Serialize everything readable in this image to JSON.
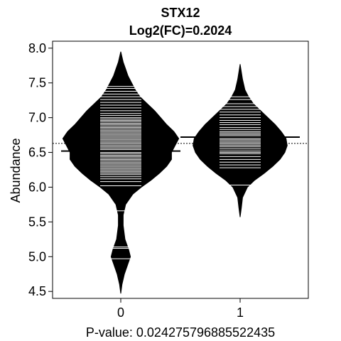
{
  "chart_data": {
    "type": "beanplot",
    "title": "STX12",
    "subtitle": "Log2(FC)=0.2024",
    "ylabel": "Abundance",
    "xlabel": "P-value: 0.024275796885522435",
    "categories": [
      "0",
      "1"
    ],
    "ylim": [
      4.4,
      8.1
    ],
    "yticks": [
      "4.5",
      "5.0",
      "5.5",
      "6.0",
      "6.5",
      "7.0",
      "7.5",
      "8.0"
    ],
    "overall_mean": 6.63,
    "groups": [
      {
        "name": "0",
        "mean": 6.52,
        "density": [
          [
            4.47,
            0.0
          ],
          [
            4.6,
            0.01
          ],
          [
            4.75,
            0.03
          ],
          [
            4.9,
            0.06
          ],
          [
            5.0,
            0.08
          ],
          [
            5.1,
            0.065
          ],
          [
            5.25,
            0.035
          ],
          [
            5.45,
            0.02
          ],
          [
            5.6,
            0.02
          ],
          [
            5.75,
            0.04
          ],
          [
            5.9,
            0.1
          ],
          [
            6.0,
            0.17
          ],
          [
            6.1,
            0.25
          ],
          [
            6.2,
            0.32
          ],
          [
            6.3,
            0.38
          ],
          [
            6.4,
            0.42
          ],
          [
            6.5,
            0.42
          ],
          [
            6.6,
            0.45
          ],
          [
            6.7,
            0.48
          ],
          [
            6.8,
            0.44
          ],
          [
            6.9,
            0.38
          ],
          [
            7.0,
            0.33
          ],
          [
            7.1,
            0.28
          ],
          [
            7.2,
            0.22
          ],
          [
            7.3,
            0.16
          ],
          [
            7.4,
            0.12
          ],
          [
            7.5,
            0.09
          ],
          [
            7.6,
            0.06
          ],
          [
            7.7,
            0.04
          ],
          [
            7.8,
            0.02
          ],
          [
            7.95,
            0.0
          ]
        ],
        "points": [
          4.97,
          5.12,
          5.14,
          5.66,
          6.02,
          6.08,
          6.12,
          6.15,
          6.18,
          6.2,
          6.22,
          6.24,
          6.26,
          6.28,
          6.3,
          6.32,
          6.34,
          6.36,
          6.38,
          6.4,
          6.42,
          6.44,
          6.46,
          6.48,
          6.5,
          6.52,
          6.54,
          6.56,
          6.58,
          6.6,
          6.62,
          6.64,
          6.66,
          6.68,
          6.7,
          6.72,
          6.74,
          6.76,
          6.78,
          6.8,
          6.82,
          6.84,
          6.86,
          6.88,
          6.9,
          6.92,
          6.94,
          6.96,
          6.98,
          7.0,
          7.03,
          7.06,
          7.1,
          7.14,
          7.18,
          7.22,
          7.26,
          7.3,
          7.34,
          7.38,
          7.42,
          7.45
        ]
      },
      {
        "name": "1",
        "mean": 6.72,
        "density": [
          [
            5.57,
            0.0
          ],
          [
            5.7,
            0.01
          ],
          [
            5.85,
            0.02
          ],
          [
            6.0,
            0.06
          ],
          [
            6.1,
            0.12
          ],
          [
            6.2,
            0.2
          ],
          [
            6.3,
            0.27
          ],
          [
            6.4,
            0.33
          ],
          [
            6.5,
            0.37
          ],
          [
            6.6,
            0.39
          ],
          [
            6.7,
            0.38
          ],
          [
            6.8,
            0.34
          ],
          [
            6.9,
            0.29
          ],
          [
            7.0,
            0.23
          ],
          [
            7.1,
            0.17
          ],
          [
            7.2,
            0.11
          ],
          [
            7.3,
            0.07
          ],
          [
            7.4,
            0.04
          ],
          [
            7.55,
            0.02
          ],
          [
            7.77,
            0.0
          ]
        ],
        "points": [
          6.03,
          6.28,
          6.32,
          6.36,
          6.4,
          6.44,
          6.48,
          6.5,
          6.52,
          6.55,
          6.58,
          6.6,
          6.62,
          6.64,
          6.66,
          6.68,
          6.7,
          6.72,
          6.74,
          6.76,
          6.78,
          6.8,
          6.83,
          6.86,
          6.9,
          6.93,
          6.96,
          7.0,
          7.04,
          7.08,
          7.12,
          7.16,
          7.2,
          7.26,
          7.3
        ]
      }
    ]
  }
}
